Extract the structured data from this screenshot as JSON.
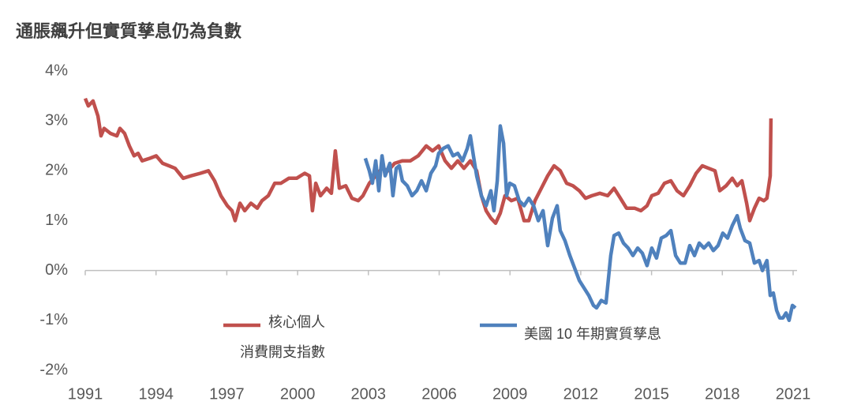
{
  "chart_data": {
    "type": "line",
    "title": "通脹飆升但實質孳息仍為負數",
    "xlim": [
      1991,
      2021
    ],
    "xticks": [
      1991,
      1994,
      1997,
      2000,
      2003,
      2006,
      2009,
      2012,
      2015,
      2018,
      2021
    ],
    "ylim": [
      -2,
      4
    ],
    "yticks": [
      {
        "value": -2,
        "label": "-2%"
      },
      {
        "value": -1,
        "label": "-1%"
      },
      {
        "value": 0,
        "label": "0%"
      },
      {
        "value": 1,
        "label": "1%"
      },
      {
        "value": 2,
        "label": "2%"
      },
      {
        "value": 3,
        "label": "3%"
      },
      {
        "value": 4,
        "label": "4%"
      }
    ],
    "grid": false,
    "series": [
      {
        "name": "核心個人消費開支指數",
        "color": "#c0504d",
        "x": [
          1991.0,
          1991.13,
          1991.33,
          1991.54,
          1991.67,
          1991.8,
          1992.07,
          1992.34,
          1992.47,
          1992.67,
          1992.87,
          1993.07,
          1993.24,
          1993.41,
          1993.74,
          1994.01,
          1994.28,
          1994.55,
          1994.81,
          1995.15,
          1995.48,
          1995.88,
          1996.22,
          1996.48,
          1996.75,
          1997.02,
          1997.22,
          1997.35,
          1997.56,
          1997.76,
          1998.02,
          1998.29,
          1998.49,
          1998.76,
          1999.03,
          1999.29,
          1999.63,
          1999.96,
          2000.3,
          2000.5,
          2000.63,
          2000.77,
          2000.97,
          2001.23,
          2001.43,
          2001.6,
          2001.77,
          2002.04,
          2002.3,
          2002.57,
          2002.77,
          2003.04,
          2003.31,
          2003.58,
          2003.84,
          2004.11,
          2004.44,
          2004.78,
          2005.11,
          2005.45,
          2005.72,
          2005.98,
          2006.25,
          2006.52,
          2006.79,
          2007.05,
          2007.32,
          2007.59,
          2007.79,
          2007.99,
          2008.19,
          2008.39,
          2008.59,
          2008.79,
          2009.06,
          2009.33,
          2009.6,
          2009.8,
          2010.06,
          2010.33,
          2010.6,
          2010.87,
          2011.13,
          2011.4,
          2011.67,
          2011.94,
          2012.2,
          2012.47,
          2012.81,
          2013.14,
          2013.41,
          2013.68,
          2013.94,
          2014.28,
          2014.55,
          2014.81,
          2015.01,
          2015.28,
          2015.55,
          2015.82,
          2016.08,
          2016.35,
          2016.62,
          2016.89,
          2017.15,
          2017.42,
          2017.69,
          2017.89,
          2018.16,
          2018.42,
          2018.63,
          2018.83,
          2019.03,
          2019.16,
          2019.36,
          2019.56,
          2019.76,
          2019.89,
          2020.03,
          2020.06
        ],
        "values": [
          3.45,
          3.3,
          3.4,
          3.1,
          2.7,
          2.85,
          2.75,
          2.7,
          2.85,
          2.75,
          2.5,
          2.3,
          2.35,
          2.2,
          2.25,
          2.3,
          2.15,
          2.1,
          2.05,
          1.85,
          1.9,
          1.95,
          2.0,
          1.8,
          1.5,
          1.3,
          1.2,
          1.0,
          1.35,
          1.2,
          1.35,
          1.25,
          1.4,
          1.5,
          1.75,
          1.75,
          1.85,
          1.85,
          1.95,
          1.9,
          1.2,
          1.75,
          1.5,
          1.65,
          1.55,
          2.4,
          1.65,
          1.7,
          1.45,
          1.4,
          1.5,
          1.75,
          1.9,
          2.05,
          2.0,
          2.15,
          2.2,
          2.2,
          2.3,
          2.5,
          2.4,
          2.5,
          2.2,
          2.05,
          2.2,
          2.05,
          2.2,
          2.0,
          1.5,
          1.2,
          1.05,
          0.95,
          1.15,
          1.5,
          1.4,
          1.45,
          1.0,
          1.0,
          1.4,
          1.65,
          1.9,
          2.1,
          2.0,
          1.75,
          1.7,
          1.6,
          1.45,
          1.5,
          1.55,
          1.5,
          1.65,
          1.45,
          1.25,
          1.25,
          1.2,
          1.3,
          1.5,
          1.55,
          1.75,
          1.8,
          1.6,
          1.5,
          1.7,
          1.95,
          2.1,
          2.05,
          2.0,
          1.6,
          1.7,
          1.85,
          1.7,
          1.8,
          1.35,
          1.0,
          1.25,
          1.45,
          1.4,
          1.45,
          1.9,
          3.05
        ]
      },
      {
        "name": "美國 10 年期實質孳息",
        "color": "#4f81bd",
        "x": [
          2002.87,
          2003.04,
          2003.17,
          2003.31,
          2003.44,
          2003.58,
          2003.71,
          2003.91,
          2004.04,
          2004.18,
          2004.31,
          2004.44,
          2004.65,
          2004.85,
          2005.05,
          2005.25,
          2005.45,
          2005.65,
          2005.85,
          2005.98,
          2006.18,
          2006.38,
          2006.59,
          2006.79,
          2006.99,
          2007.19,
          2007.32,
          2007.45,
          2007.59,
          2007.79,
          2007.99,
          2008.19,
          2008.32,
          2008.46,
          2008.59,
          2008.73,
          2008.86,
          2008.99,
          2009.19,
          2009.39,
          2009.6,
          2009.8,
          2010.0,
          2010.2,
          2010.4,
          2010.6,
          2010.8,
          2011.0,
          2011.13,
          2011.33,
          2011.54,
          2011.74,
          2011.94,
          2012.14,
          2012.34,
          2012.54,
          2012.67,
          2012.87,
          2013.07,
          2013.27,
          2013.41,
          2013.61,
          2013.81,
          2014.01,
          2014.21,
          2014.41,
          2014.61,
          2014.81,
          2015.01,
          2015.21,
          2015.41,
          2015.62,
          2015.82,
          2016.02,
          2016.22,
          2016.42,
          2016.62,
          2016.82,
          2017.02,
          2017.22,
          2017.42,
          2017.62,
          2017.82,
          2018.02,
          2018.22,
          2018.42,
          2018.63,
          2018.76,
          2018.96,
          2019.16,
          2019.36,
          2019.56,
          2019.7,
          2019.89,
          2020.03,
          2020.16,
          2020.3,
          2020.43,
          2020.57,
          2020.7,
          2020.83,
          2020.97,
          2021.1
        ],
        "values": [
          2.25,
          2.0,
          1.75,
          2.2,
          1.6,
          2.3,
          1.9,
          2.15,
          1.5,
          2.05,
          2.1,
          1.8,
          1.7,
          1.5,
          1.6,
          1.8,
          1.6,
          1.95,
          2.1,
          2.35,
          2.45,
          2.5,
          2.3,
          2.35,
          2.2,
          2.45,
          2.7,
          2.3,
          1.9,
          1.5,
          1.3,
          1.6,
          1.2,
          1.8,
          2.9,
          2.55,
          1.5,
          1.75,
          1.7,
          1.4,
          1.3,
          1.45,
          1.3,
          1.0,
          1.2,
          0.5,
          1.05,
          1.3,
          0.8,
          0.6,
          0.3,
          0.05,
          -0.2,
          -0.35,
          -0.5,
          -0.7,
          -0.75,
          -0.6,
          -0.65,
          0.3,
          0.7,
          0.75,
          0.55,
          0.45,
          0.3,
          0.45,
          0.35,
          0.1,
          0.45,
          0.25,
          0.65,
          0.7,
          0.8,
          0.3,
          0.15,
          0.15,
          0.5,
          0.3,
          0.55,
          0.45,
          0.55,
          0.4,
          0.5,
          0.75,
          0.65,
          0.9,
          1.1,
          0.85,
          0.6,
          0.55,
          0.15,
          0.2,
          0.0,
          0.2,
          -0.5,
          -0.45,
          -0.8,
          -0.95,
          -0.95,
          -0.85,
          -1.0,
          -0.7,
          -0.75
        ]
      }
    ]
  }
}
